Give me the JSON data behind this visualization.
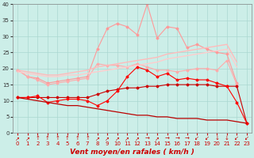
{
  "x": [
    0,
    1,
    2,
    3,
    4,
    5,
    6,
    7,
    8,
    9,
    10,
    11,
    12,
    13,
    14,
    15,
    16,
    17,
    18,
    19,
    20,
    21,
    22,
    23
  ],
  "series": [
    {
      "name": "max_rafales",
      "color": "#ff9999",
      "marker": "D",
      "markersize": 1.5,
      "linewidth": 0.8,
      "y": [
        19.5,
        17.5,
        17.0,
        15.5,
        16.0,
        16.5,
        17.0,
        17.5,
        26.0,
        32.5,
        34.0,
        33.0,
        30.5,
        40.0,
        29.5,
        33.0,
        32.5,
        26.5,
        27.5,
        26.0,
        25.0,
        24.5,
        15.5,
        null
      ]
    },
    {
      "name": "moy_rafales",
      "color": "#ffaaaa",
      "marker": "D",
      "markersize": 1.5,
      "linewidth": 0.8,
      "y": [
        19.5,
        17.5,
        16.5,
        15.0,
        15.5,
        16.0,
        16.5,
        17.0,
        21.5,
        21.0,
        21.0,
        20.5,
        21.5,
        20.5,
        19.5,
        19.5,
        19.0,
        19.5,
        20.0,
        20.0,
        19.5,
        22.5,
        15.0,
        null
      ]
    },
    {
      "name": "upper_smooth",
      "color": "#ffbbbb",
      "marker": null,
      "markersize": 0,
      "linewidth": 1.0,
      "y": [
        19.5,
        19.0,
        18.5,
        18.0,
        18.0,
        18.5,
        19.0,
        19.5,
        20.5,
        21.0,
        21.5,
        22.0,
        22.5,
        23.0,
        23.5,
        24.5,
        25.0,
        25.5,
        26.0,
        26.5,
        27.0,
        27.5,
        22.0,
        null
      ]
    },
    {
      "name": "mid_smooth",
      "color": "#ffcccc",
      "marker": null,
      "markersize": 0,
      "linewidth": 1.0,
      "y": [
        19.0,
        18.5,
        18.0,
        17.5,
        17.5,
        18.0,
        18.0,
        18.5,
        19.0,
        19.5,
        20.0,
        20.5,
        21.0,
        21.5,
        22.0,
        23.0,
        23.5,
        24.0,
        24.5,
        25.0,
        25.5,
        26.0,
        20.5,
        null
      ]
    },
    {
      "name": "avg_wind",
      "color": "#cc0000",
      "marker": "D",
      "markersize": 1.5,
      "linewidth": 0.8,
      "y": [
        11.0,
        11.0,
        11.0,
        11.0,
        11.0,
        11.0,
        11.0,
        11.0,
        12.0,
        13.0,
        13.5,
        14.0,
        14.0,
        14.5,
        14.5,
        15.0,
        15.0,
        15.0,
        15.0,
        15.0,
        14.5,
        14.5,
        14.5,
        3.0
      ]
    },
    {
      "name": "low_wind",
      "color": "#ff0000",
      "marker": "D",
      "markersize": 1.5,
      "linewidth": 0.8,
      "y": [
        11.0,
        11.0,
        11.5,
        9.5,
        10.0,
        10.5,
        10.5,
        10.0,
        8.5,
        10.0,
        13.0,
        17.5,
        20.5,
        19.5,
        17.5,
        18.5,
        16.5,
        17.0,
        16.5,
        16.5,
        15.5,
        14.5,
        9.5,
        3.0
      ]
    },
    {
      "name": "bottom_smooth",
      "color": "#bb0000",
      "marker": null,
      "markersize": 0,
      "linewidth": 0.9,
      "y": [
        11.0,
        10.5,
        10.0,
        9.5,
        9.0,
        8.5,
        8.5,
        8.0,
        7.5,
        7.0,
        6.5,
        6.0,
        5.5,
        5.5,
        5.0,
        5.0,
        4.5,
        4.5,
        4.5,
        4.0,
        4.0,
        4.0,
        3.5,
        3.0
      ]
    }
  ],
  "xlabel": "Vent moyen/en rafales ( km/h )",
  "ylim": [
    0,
    40
  ],
  "xlim": [
    -0.5,
    23.5
  ],
  "yticks": [
    0,
    5,
    10,
    15,
    20,
    25,
    30,
    35,
    40
  ],
  "xticks": [
    0,
    1,
    2,
    3,
    4,
    5,
    6,
    7,
    8,
    9,
    10,
    11,
    12,
    13,
    14,
    15,
    16,
    17,
    18,
    19,
    20,
    21,
    22,
    23
  ],
  "background_color": "#cceee8",
  "grid_color": "#aad8d0",
  "xlabel_fontsize": 6.5,
  "tick_fontsize": 5,
  "wind_arrows": [
    "↗",
    "↗",
    "↑",
    "↑",
    "↑",
    "↑",
    "↑",
    "↑",
    "↗",
    "↗",
    "↗",
    "↗",
    "↗",
    "→",
    "↗",
    "→",
    "→",
    "→",
    "↙",
    "↙",
    "↓",
    "↓",
    "↙",
    "↙"
  ]
}
